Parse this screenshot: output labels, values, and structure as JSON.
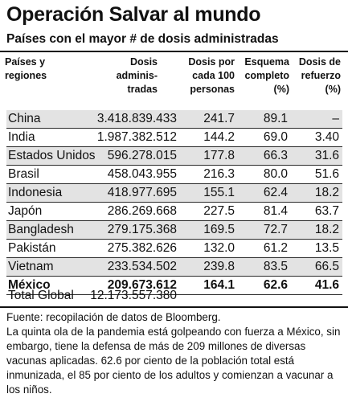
{
  "title": "Operación Salvar al mundo",
  "subtitle": "Países con el mayor # de dosis administradas",
  "headers": {
    "country": [
      "Países y",
      "regiones"
    ],
    "doses": [
      "Dosis",
      "adminis-",
      "tradas"
    ],
    "per100": [
      "Dosis por",
      "cada 100",
      "personas"
    ],
    "complete": [
      "Esquema",
      "completo",
      "(%)"
    ],
    "booster": [
      "Dosis de",
      "refuerzo",
      "(%)"
    ]
  },
  "rows": [
    {
      "country": "China",
      "doses": "3.418.839.433",
      "per100": "241.7",
      "complete": "89.1",
      "booster": "–"
    },
    {
      "country": "India",
      "doses": "1.987.382.512",
      "per100": "144.2",
      "complete": "69.0",
      "booster": "3.40"
    },
    {
      "country": "Estados Unidos",
      "doses": "596.278.015",
      "per100": "177.8",
      "complete": "66.3",
      "booster": "31.6"
    },
    {
      "country": "Brasil",
      "doses": "458.043.955",
      "per100": "216.3",
      "complete": "80.0",
      "booster": "51.6"
    },
    {
      "country": "Indonesia",
      "doses": "418.977.695",
      "per100": "155.1",
      "complete": "62.4",
      "booster": "18.2"
    },
    {
      "country": "Japón",
      "doses": "286.269.668",
      "per100": "227.5",
      "complete": "81.4",
      "booster": "63.7"
    },
    {
      "country": "Bangladesh",
      "doses": "279.175.368",
      "per100": "169.5",
      "complete": "72.7",
      "booster": "18.2"
    },
    {
      "country": "Pakistán",
      "doses": "275.382.626",
      "per100": "132.0",
      "complete": "61.2",
      "booster": "13.5"
    },
    {
      "country": "Vietnam",
      "doses": "233.534.502",
      "per100": "239.8",
      "complete": "83.5",
      "booster": "66.5"
    },
    {
      "country": "México",
      "doses": "209.673.612",
      "per100": "164.1",
      "complete": "62.6",
      "booster": "41.6"
    }
  ],
  "total": {
    "label": "Total Global",
    "doses": "12.173.557.380"
  },
  "notes": {
    "source": "Fuente: recopilación de datos de Bloomberg.",
    "body": "La quinta ola de la pandemia está golpeando con fuerza a México, sin embargo, tiene la defensa de más de 209 millones de diversas vacunas aplicadas. 62.6 por ciento de la población total está inmunizada, el 85 por ciento de los adultos y comienzan a vacunar a los niños."
  }
}
